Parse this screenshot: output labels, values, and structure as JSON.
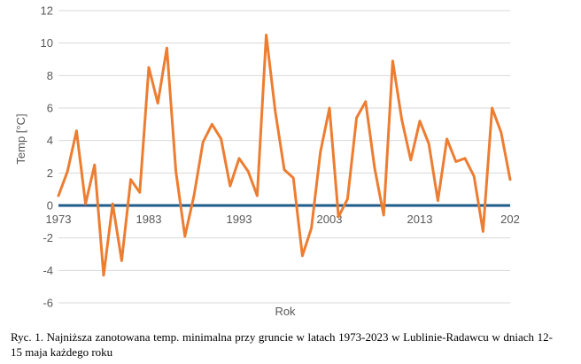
{
  "chart_data": {
    "type": "line",
    "title": "",
    "xlabel": "Rok",
    "ylabel": "Temp [°C]",
    "ylim": [
      -6,
      12
    ],
    "yticks": [
      12,
      10,
      8,
      6,
      4,
      2,
      0,
      -2,
      -4,
      -6
    ],
    "xticks": [
      "1973",
      "1983",
      "1993",
      "2003",
      "2013",
      "202"
    ],
    "grid": true,
    "colors": {
      "series": "#ED7D31",
      "zero_line": "#1F5C8B",
      "grid": "#D9D9D9",
      "text": "#595959"
    },
    "x": [
      1973,
      1974,
      1975,
      1976,
      1977,
      1978,
      1979,
      1980,
      1981,
      1982,
      1983,
      1984,
      1985,
      1986,
      1987,
      1988,
      1989,
      1990,
      1991,
      1992,
      1993,
      1994,
      1995,
      1996,
      1997,
      1998,
      1999,
      2000,
      2001,
      2002,
      2003,
      2004,
      2005,
      2006,
      2007,
      2008,
      2009,
      2010,
      2011,
      2012,
      2013,
      2014,
      2015,
      2016,
      2017,
      2018,
      2019,
      2020,
      2021,
      2022,
      2023
    ],
    "series": [
      {
        "values": [
          0.6,
          2.1,
          4.6,
          0.1,
          2.5,
          -4.3,
          0.1,
          -3.4,
          1.6,
          0.8,
          8.5,
          6.3,
          9.7,
          2.1,
          -1.9,
          0.6,
          3.9,
          5.0,
          4.1,
          1.2,
          2.9,
          2.1,
          0.6,
          10.5,
          5.8,
          2.2,
          1.7,
          -3.1,
          -1.4,
          3.3,
          6.0,
          -0.7,
          0.4,
          5.4,
          6.4,
          2.3,
          -0.6,
          8.9,
          5.3,
          2.8,
          5.2,
          3.8,
          0.3,
          4.1,
          2.7,
          2.9,
          1.8,
          -1.6,
          6.0,
          4.5,
          1.6
        ]
      }
    ]
  },
  "caption": "Ryc. 1. Najniższa zanotowana temp. minimalna przy gruncie w latach 1973-2023 w Lublinie-Radawcu w dniach 12-15 maja każdego roku"
}
